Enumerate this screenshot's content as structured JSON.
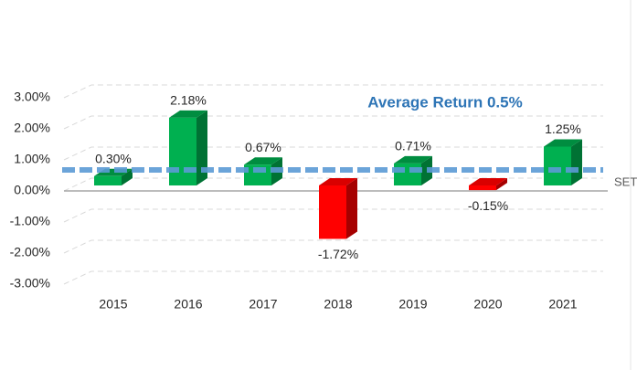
{
  "chart_data": {
    "type": "bar3d",
    "categories": [
      "2015",
      "2016",
      "2017",
      "2018",
      "2019",
      "2020",
      "2021"
    ],
    "values": [
      0.3,
      2.18,
      0.67,
      -1.72,
      0.71,
      -0.15,
      1.25
    ],
    "value_labels": [
      "0.30%",
      "2.18%",
      "0.67%",
      "-1.72%",
      "0.71%",
      "-0.15%",
      "1.25%"
    ],
    "positive_color": "#00b050",
    "negative_color": "#ff0000",
    "ylim": [
      -3,
      3
    ],
    "yticks": [
      {
        "value": -3,
        "label": "-3.00%"
      },
      {
        "value": -2,
        "label": "-2.00%"
      },
      {
        "value": -1,
        "label": "-1.00%"
      },
      {
        "value": 0,
        "label": "0.00%"
      },
      {
        "value": 1,
        "label": "1.00%"
      },
      {
        "value": 2,
        "label": "2.00%"
      },
      {
        "value": 3,
        "label": "3.00%"
      }
    ],
    "grid": true,
    "average": {
      "value": 0.5,
      "label": "Average Return 0.5%",
      "color": "#5b9bd5"
    },
    "line_label": "SET"
  }
}
